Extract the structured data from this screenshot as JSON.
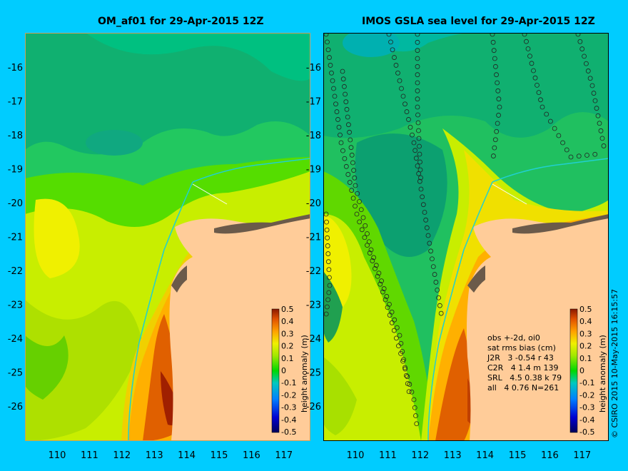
{
  "left_panel": {
    "title": "OM_af01 for 29-Apr-2015 12Z"
  },
  "right_panel": {
    "title": "IMOS GSLA sea level  for 29-Apr-2015 12Z"
  },
  "axes": {
    "lat_ticks": [
      "-16",
      "-17",
      "-18",
      "-19",
      "-20",
      "-21",
      "-22",
      "-23",
      "-24",
      "-25",
      "-26"
    ],
    "lon_ticks": [
      "110",
      "111",
      "112",
      "113",
      "114",
      "115",
      "116",
      "117"
    ]
  },
  "colorbar": {
    "label": "height anomaly (m)",
    "ticks": [
      "0.5",
      "0.4",
      "0.3",
      "0.2",
      "0.1",
      "0",
      "-0.1",
      "-0.2",
      "-0.3",
      "-0.4",
      "-0.5"
    ],
    "colors": [
      "#00005a",
      "#0000c8",
      "#0060ff",
      "#00c8e0",
      "#00d890",
      "#00e000",
      "#a0e800",
      "#f0f000",
      "#ffb000",
      "#e06000",
      "#a02000"
    ]
  },
  "stats": {
    "header": "obs +-2d, oi0",
    "subheader": "sat rms bias (cm)",
    "rows": [
      "J2R   3 -0.54 r 43",
      "C2R   4 1.4 m 139",
      "SRL   4.5 0.38 k 79",
      "all   4 0.76 N=261"
    ]
  },
  "credit": "© CSIRO 2015   10-May-2015 16:15:57",
  "colors": {
    "background": "#00ccff",
    "land": "#ffcc99",
    "coast_dark": "#6b5a4a"
  }
}
